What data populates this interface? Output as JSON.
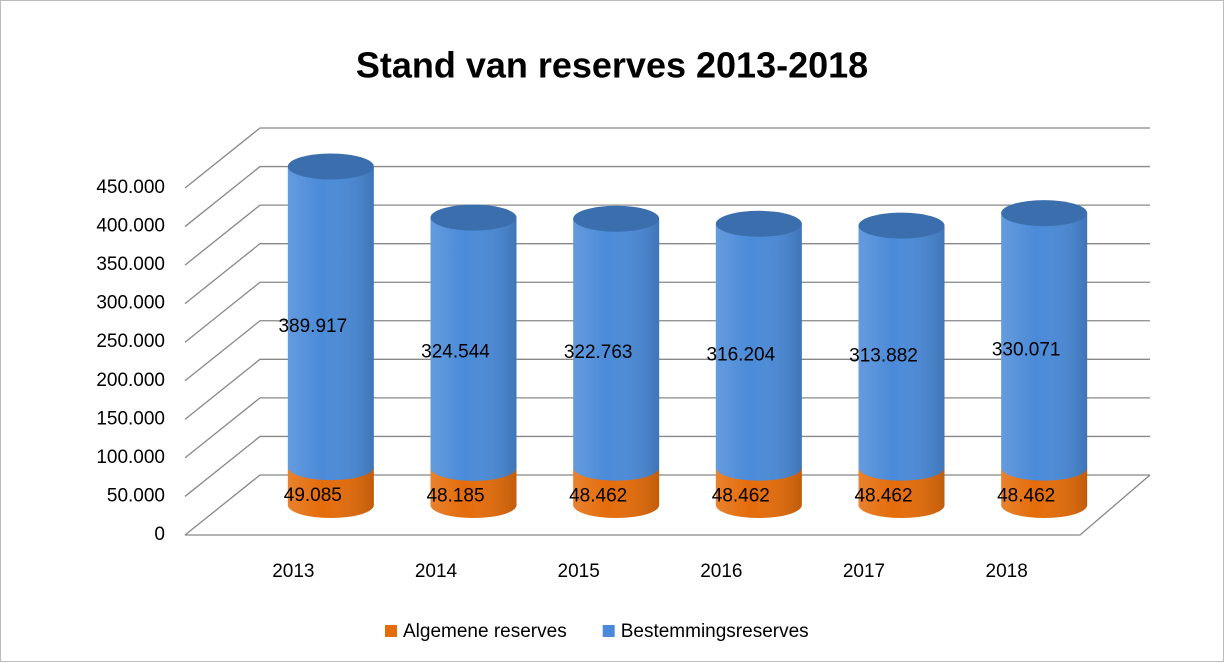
{
  "chart_data": {
    "type": "bar3d-stacked-cylinder",
    "title": "Stand van reserves 2013-2018",
    "categories": [
      "2013",
      "2014",
      "2015",
      "2016",
      "2017",
      "2018"
    ],
    "series": [
      {
        "name": "Algemene reserves",
        "color": "#e46c0a",
        "values": [
          49085,
          48185,
          48462,
          48462,
          48462,
          48462
        ],
        "value_labels": [
          "49.085",
          "48.185",
          "48.462",
          "48.462",
          "48.462",
          "48.462"
        ]
      },
      {
        "name": "Bestemmingsreserves",
        "color": "#4a8ad8",
        "values": [
          389917,
          324544,
          322763,
          316204,
          313882,
          330071
        ],
        "value_labels": [
          "389.917",
          "324.544",
          "322.763",
          "316.204",
          "313.882",
          "330.071"
        ]
      }
    ],
    "ylim": [
      0,
      450000
    ],
    "yticks": [
      0,
      {
        "value": 50000,
        "label": "50.000"
      },
      {
        "value": 100000,
        "label": "100.000"
      },
      {
        "value": 150000,
        "label": "150.000"
      },
      {
        "value": 200000,
        "label": "200.000"
      },
      {
        "value": 250000,
        "label": "250.000"
      },
      {
        "value": 300000,
        "label": "300.000"
      },
      {
        "value": 350000,
        "label": "350.000"
      },
      {
        "value": 400000,
        "label": "400.000"
      },
      {
        "value": 450000,
        "label": "450.000"
      }
    ],
    "grid": true,
    "legend": "bottom"
  }
}
